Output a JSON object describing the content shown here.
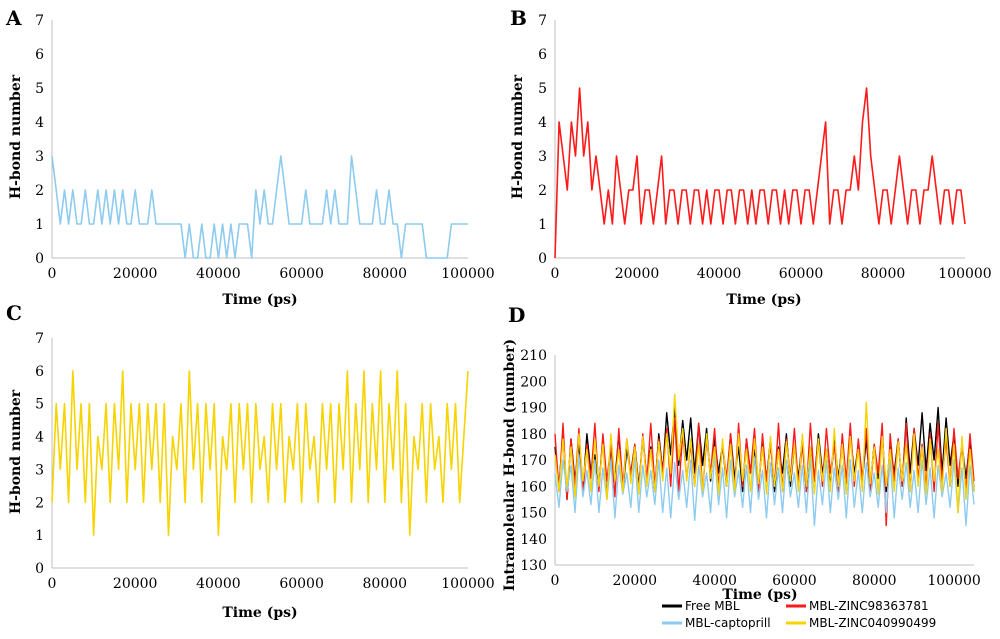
{
  "chart_data": [
    {
      "panel": "A",
      "type": "line",
      "xlabel": "Time (ps)",
      "ylabel": "H-bond number",
      "xlim": [
        0,
        100000
      ],
      "ylim": [
        0,
        7
      ],
      "xticks": [
        0,
        20000,
        40000,
        60000,
        80000,
        100000
      ],
      "yticks": [
        0,
        1,
        2,
        3,
        4,
        5,
        6,
        7
      ],
      "series": [
        {
          "color": "#8ecbf0",
          "sampling_step_ps": 1000,
          "y": [
            3,
            2,
            1,
            2,
            1,
            2,
            1,
            1,
            2,
            1,
            1,
            2,
            1,
            2,
            1,
            2,
            1,
            2,
            1,
            1,
            2,
            1,
            1,
            1,
            2,
            1,
            1,
            1,
            1,
            1,
            1,
            1,
            0,
            1,
            0,
            0,
            1,
            0,
            0,
            1,
            0,
            1,
            0,
            1,
            0,
            1,
            1,
            1,
            0,
            2,
            1,
            2,
            1,
            1,
            2,
            3,
            2,
            1,
            1,
            1,
            1,
            2,
            1,
            1,
            1,
            1,
            2,
            1,
            2,
            1,
            1,
            1,
            3,
            2,
            1,
            1,
            1,
            1,
            2,
            1,
            1,
            2,
            1,
            1,
            0,
            1,
            1,
            1,
            1,
            1,
            0,
            0,
            0,
            0,
            0,
            0,
            1,
            1,
            1,
            1,
            1
          ]
        }
      ]
    },
    {
      "panel": "B",
      "type": "line",
      "xlabel": "Time (ps)",
      "ylabel": "H-bond number",
      "xlim": [
        0,
        100000
      ],
      "ylim": [
        0,
        7
      ],
      "xticks": [
        0,
        20000,
        40000,
        60000,
        80000,
        100000
      ],
      "yticks": [
        0,
        1,
        2,
        3,
        4,
        5,
        6,
        7
      ],
      "series": [
        {
          "color": "#ff1a1a",
          "sampling_step_ps": 1000,
          "y": [
            0,
            4,
            3,
            2,
            4,
            3,
            5,
            3,
            4,
            2,
            3,
            2,
            1,
            2,
            1,
            3,
            2,
            1,
            2,
            2,
            3,
            1,
            2,
            2,
            1,
            2,
            3,
            1,
            2,
            2,
            1,
            2,
            2,
            1,
            2,
            2,
            1,
            2,
            1,
            2,
            2,
            1,
            2,
            2,
            1,
            2,
            2,
            1,
            2,
            1,
            2,
            2,
            1,
            2,
            2,
            1,
            2,
            1,
            2,
            2,
            1,
            2,
            2,
            1,
            2,
            3,
            4,
            1,
            2,
            2,
            1,
            2,
            2,
            3,
            2,
            4,
            5,
            3,
            2,
            1,
            2,
            2,
            1,
            2,
            3,
            2,
            1,
            2,
            2,
            1,
            2,
            2,
            3,
            2,
            1,
            2,
            2,
            1,
            2,
            2,
            1
          ]
        }
      ]
    },
    {
      "panel": "C",
      "type": "line",
      "xlabel": "Time (ps)",
      "ylabel": "H-bond number",
      "xlim": [
        0,
        100000
      ],
      "ylim": [
        0,
        7
      ],
      "xticks": [
        0,
        20000,
        40000,
        60000,
        80000,
        100000
      ],
      "yticks": [
        0,
        1,
        2,
        3,
        4,
        5,
        6,
        7
      ],
      "series": [
        {
          "color": "#f7d300",
          "sampling_step_ps": 1000,
          "y": [
            2,
            5,
            3,
            5,
            2,
            6,
            3,
            5,
            2,
            5,
            1,
            4,
            3,
            5,
            2,
            5,
            3,
            6,
            2,
            5,
            3,
            5,
            2,
            5,
            3,
            5,
            2,
            5,
            1,
            4,
            3,
            5,
            2,
            6,
            3,
            5,
            2,
            5,
            3,
            5,
            1,
            4,
            3,
            5,
            2,
            5,
            3,
            5,
            2,
            5,
            3,
            4,
            2,
            5,
            3,
            5,
            2,
            4,
            3,
            5,
            2,
            5,
            3,
            4,
            2,
            5,
            3,
            5,
            2,
            5,
            3,
            6,
            2,
            5,
            3,
            6,
            2,
            5,
            3,
            6,
            2,
            5,
            3,
            6,
            2,
            5,
            1,
            4,
            3,
            5,
            2,
            5,
            3,
            4,
            2,
            5,
            3,
            5,
            2,
            4,
            6
          ]
        }
      ]
    },
    {
      "panel": "D",
      "type": "line",
      "xlabel": "Time (ps)",
      "ylabel": "Intramoleular H-bond (number)",
      "xlim": [
        0,
        105000
      ],
      "ylim": [
        130,
        210
      ],
      "xticks": [
        0,
        20000,
        40000,
        60000,
        80000,
        100000
      ],
      "yticks": [
        130,
        140,
        150,
        160,
        170,
        180,
        190,
        200,
        210
      ],
      "series": [
        {
          "name": "Free MBL",
          "color": "#000000",
          "sampling_step_ps": 1000,
          "y": [
            175,
            160,
            180,
            155,
            178,
            162,
            176,
            158,
            180,
            165,
            172,
            160,
            178,
            156,
            175,
            162,
            180,
            158,
            174,
            165,
            176,
            160,
            178,
            163,
            175,
            158,
            180,
            165,
            188,
            172,
            190,
            168,
            185,
            170,
            186,
            165,
            184,
            168,
            182,
            162,
            178,
            165,
            176,
            160,
            180,
            163,
            175,
            158,
            178,
            165,
            174,
            160,
            176,
            162,
            178,
            158,
            175,
            165,
            180,
            160,
            176,
            163,
            178,
            158,
            175,
            162,
            180,
            165,
            174,
            160,
            178,
            163,
            176,
            158,
            180,
            165,
            175,
            162,
            178,
            160,
            176,
            163,
            180,
            158,
            175,
            165,
            178,
            160,
            186,
            165,
            182,
            168,
            188,
            166,
            184,
            170,
            190,
            165,
            186,
            168,
            180,
            160,
            176,
            163,
            178,
            158
          ]
        },
        {
          "name": "MBL-ZINC98363781",
          "color": "#ff1a1a",
          "sampling_step_ps": 1000,
          "y": [
            180,
            158,
            184,
            155,
            178,
            160,
            182,
            157,
            176,
            163,
            184,
            158,
            180,
            162,
            176,
            156,
            182,
            160,
            178,
            164,
            176,
            158,
            180,
            162,
            184,
            160,
            178,
            165,
            182,
            160,
            186,
            158,
            180,
            163,
            176,
            160,
            184,
            158,
            178,
            165,
            182,
            160,
            176,
            163,
            180,
            158,
            184,
            160,
            178,
            165,
            182,
            158,
            180,
            162,
            176,
            160,
            184,
            158,
            178,
            163,
            182,
            160,
            176,
            158,
            184,
            162,
            178,
            160,
            182,
            165,
            176,
            158,
            180,
            162,
            184,
            160,
            178,
            163,
            182,
            158,
            176,
            165,
            184,
            145,
            180,
            162,
            178,
            160,
            184,
            158,
            182,
            163,
            176,
            160,
            180,
            158,
            184,
            162,
            178,
            160,
            182,
            163,
            176,
            158,
            180,
            162
          ]
        },
        {
          "name": "MBL-captoprill",
          "color": "#8ecbf0",
          "sampling_step_ps": 1000,
          "y": [
            165,
            152,
            170,
            158,
            168,
            150,
            172,
            156,
            166,
            153,
            170,
            150,
            167,
            155,
            170,
            148,
            168,
            157,
            165,
            152,
            171,
            150,
            168,
            156,
            166,
            153,
            170,
            150,
            167,
            148,
            169,
            155,
            166,
            152,
            170,
            147,
            168,
            156,
            165,
            150,
            172,
            153,
            167,
            148,
            170,
            156,
            166,
            152,
            168,
            150,
            171,
            155,
            166,
            148,
            169,
            153,
            167,
            150,
            170,
            156,
            165,
            152,
            168,
            150,
            171,
            145,
            166,
            153,
            170,
            150,
            167,
            155,
            168,
            148,
            170,
            152,
            166,
            150,
            169,
            156,
            165,
            152,
            168,
            150,
            170,
            148,
            167,
            155,
            169,
            152,
            166,
            150,
            170,
            153,
            167,
            148,
            168,
            156,
            165,
            152,
            170,
            150,
            167,
            145,
            168,
            153
          ]
        },
        {
          "name": "MBL-ZINC040990499",
          "color": "#f7d300",
          "sampling_step_ps": 1000,
          "y": [
            172,
            158,
            178,
            160,
            175,
            156,
            180,
            162,
            174,
            158,
            178,
            160,
            176,
            155,
            180,
            162,
            174,
            158,
            178,
            161,
            175,
            157,
            179,
            160,
            174,
            158,
            177,
            162,
            180,
            165,
            195,
            170,
            182,
            162,
            178,
            160,
            176,
            158,
            180,
            163,
            175,
            157,
            178,
            160,
            176,
            158,
            180,
            162,
            174,
            158,
            178,
            161,
            175,
            157,
            179,
            160,
            174,
            158,
            177,
            162,
            176,
            158,
            180,
            160,
            175,
            157,
            178,
            162,
            174,
            158,
            182,
            160,
            176,
            157,
            179,
            162,
            174,
            158,
            192,
            161,
            175,
            157,
            179,
            160,
            174,
            158,
            177,
            162,
            176,
            158,
            180,
            160,
            175,
            157,
            178,
            162,
            174,
            158,
            182,
            160,
            176,
            150,
            179,
            155,
            174,
            158
          ]
        }
      ]
    }
  ],
  "panels": {
    "A": {
      "letter": "A",
      "xlabel": "Time (ps)",
      "ylabel": "H-bond number"
    },
    "B": {
      "letter": "B",
      "xlabel": "Time (ps)",
      "ylabel": "H-bond number"
    },
    "C": {
      "letter": "C",
      "xlabel": "Time (ps)",
      "ylabel": "H-bond number"
    },
    "D": {
      "letter": "D",
      "xlabel": "Time (ps)",
      "ylabel": "Intramoleular H-bond (number)"
    }
  },
  "legend_D": [
    {
      "label": "Free MBL",
      "color": "#000000"
    },
    {
      "label": "MBL-ZINC98363781",
      "color": "#ff1a1a"
    },
    {
      "label": "MBL-captoprill",
      "color": "#8ecbf0"
    },
    {
      "label": "MBL-ZINC040990499",
      "color": "#f7d300"
    }
  ]
}
